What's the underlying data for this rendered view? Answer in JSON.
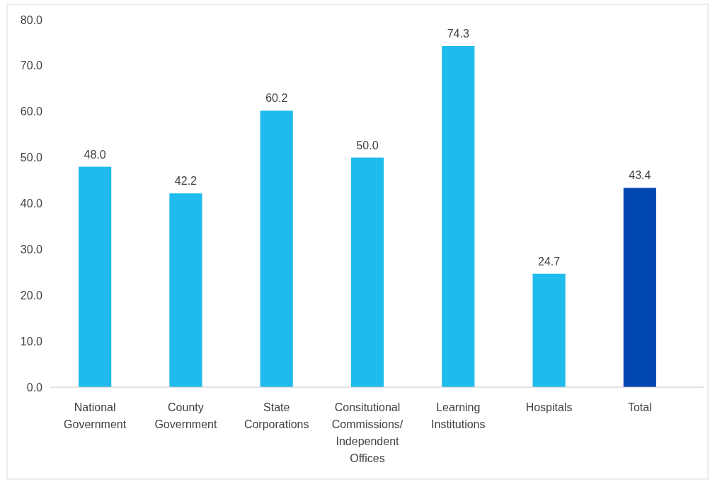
{
  "chart_data": {
    "type": "bar",
    "categories": [
      "National Government",
      "County Government",
      "State Corporations",
      "Consitutional Commissions/ Independent Offices",
      "Learning Institutions",
      "Hospitals",
      "Total"
    ],
    "values": [
      48.0,
      42.2,
      60.2,
      50.0,
      74.3,
      24.7,
      43.4
    ],
    "colors": [
      "#1fbbec",
      "#1fbbec",
      "#1fbbec",
      "#1fbbec",
      "#1fbbec",
      "#1fbbec",
      "#0047b3"
    ],
    "value_labels": [
      "48.0",
      "42.2",
      "60.2",
      "50.0",
      "74.3",
      "24.7",
      "43.4"
    ],
    "ylim": [
      0,
      80
    ],
    "yticks": [
      {
        "value": 0,
        "label": "0.0"
      },
      {
        "value": 10,
        "label": "10.0"
      },
      {
        "value": 20,
        "label": "20.0"
      },
      {
        "value": 30,
        "label": "30.0"
      },
      {
        "value": 40,
        "label": "40.0"
      },
      {
        "value": 50,
        "label": "50.0"
      },
      {
        "value": 60,
        "label": "60.0"
      },
      {
        "value": 70,
        "label": "70.0"
      },
      {
        "value": 80,
        "label": "80.0"
      }
    ],
    "grid": false
  }
}
